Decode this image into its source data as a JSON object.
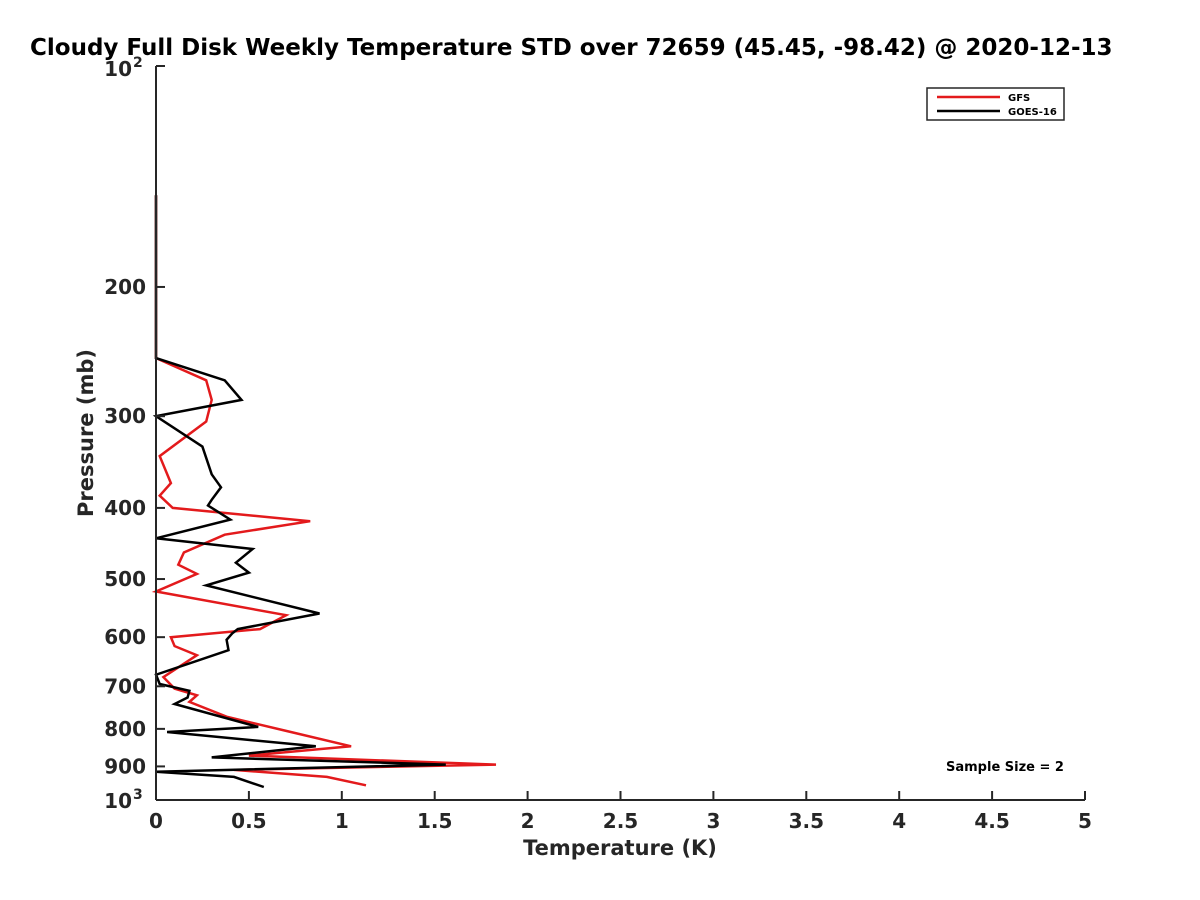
{
  "chart_data": {
    "type": "line",
    "title": "Cloudy Full Disk Weekly Temperature STD over 72659 (45.45, -98.42) @ 2020-12-13",
    "xlabel": "Temperature (K)",
    "ylabel": "Pressure (mb)",
    "xlim": [
      0,
      5
    ],
    "ylim": [
      1000,
      100
    ],
    "yscale": "log",
    "grid": false,
    "legend_position": "top-right",
    "x_ticks": [
      "0",
      "0.5",
      "1",
      "1.5",
      "2",
      "2.5",
      "3",
      "3.5",
      "4",
      "4.5",
      "5"
    ],
    "y_ticks": [
      {
        "value": 100,
        "base": "10",
        "exp": "2"
      },
      {
        "value": 200,
        "label": "200"
      },
      {
        "value": 300,
        "label": "300"
      },
      {
        "value": 400,
        "label": "400"
      },
      {
        "value": 500,
        "label": "500"
      },
      {
        "value": 600,
        "label": "600"
      },
      {
        "value": 700,
        "label": "700"
      },
      {
        "value": 800,
        "label": "800"
      },
      {
        "value": 900,
        "label": "900"
      },
      {
        "value": 1000,
        "base": "10",
        "exp": "3"
      }
    ],
    "annotation": "Sample Size = 2",
    "series": [
      {
        "name": "GFS",
        "color": "#e31a1c",
        "points": [
          [
            0.0,
            150
          ],
          [
            0.0,
            200
          ],
          [
            0.0,
            250
          ],
          [
            0.27,
            268
          ],
          [
            0.3,
            285
          ],
          [
            0.27,
            305
          ],
          [
            0.02,
            340
          ],
          [
            0.08,
            370
          ],
          [
            0.02,
            385
          ],
          [
            0.09,
            400
          ],
          [
            0.83,
            417
          ],
          [
            0.37,
            435
          ],
          [
            0.15,
            460
          ],
          [
            0.12,
            478
          ],
          [
            0.22,
            492
          ],
          [
            0.0,
            520
          ],
          [
            0.7,
            560
          ],
          [
            0.56,
            585
          ],
          [
            0.08,
            600
          ],
          [
            0.1,
            617
          ],
          [
            0.22,
            635
          ],
          [
            0.04,
            680
          ],
          [
            0.1,
            705
          ],
          [
            0.22,
            720
          ],
          [
            0.18,
            735
          ],
          [
            0.38,
            770
          ],
          [
            0.7,
            805
          ],
          [
            1.05,
            845
          ],
          [
            0.5,
            870
          ],
          [
            1.83,
            895
          ],
          [
            0.42,
            910
          ],
          [
            0.92,
            930
          ],
          [
            1.13,
            955
          ]
        ]
      },
      {
        "name": "GOES-16",
        "color": "#000000",
        "points": [
          [
            0.0,
            150
          ],
          [
            0.0,
            200
          ],
          [
            0.0,
            250
          ],
          [
            0.37,
            268
          ],
          [
            0.46,
            285
          ],
          [
            0.0,
            300
          ],
          [
            0.25,
            330
          ],
          [
            0.3,
            360
          ],
          [
            0.35,
            375
          ],
          [
            0.3,
            390
          ],
          [
            0.28,
            397
          ],
          [
            0.4,
            415
          ],
          [
            0.0,
            440
          ],
          [
            0.52,
            455
          ],
          [
            0.43,
            475
          ],
          [
            0.5,
            490
          ],
          [
            0.27,
            510
          ],
          [
            0.88,
            557
          ],
          [
            0.44,
            585
          ],
          [
            0.41,
            593
          ],
          [
            0.38,
            605
          ],
          [
            0.39,
            625
          ],
          [
            0.0,
            675
          ],
          [
            0.02,
            695
          ],
          [
            0.18,
            710
          ],
          [
            0.17,
            725
          ],
          [
            0.1,
            740
          ],
          [
            0.55,
            795
          ],
          [
            0.06,
            808
          ],
          [
            0.86,
            845
          ],
          [
            0.3,
            875
          ],
          [
            1.56,
            895
          ],
          [
            0.0,
            915
          ],
          [
            0.42,
            930
          ],
          [
            0.58,
            960
          ]
        ]
      }
    ]
  }
}
